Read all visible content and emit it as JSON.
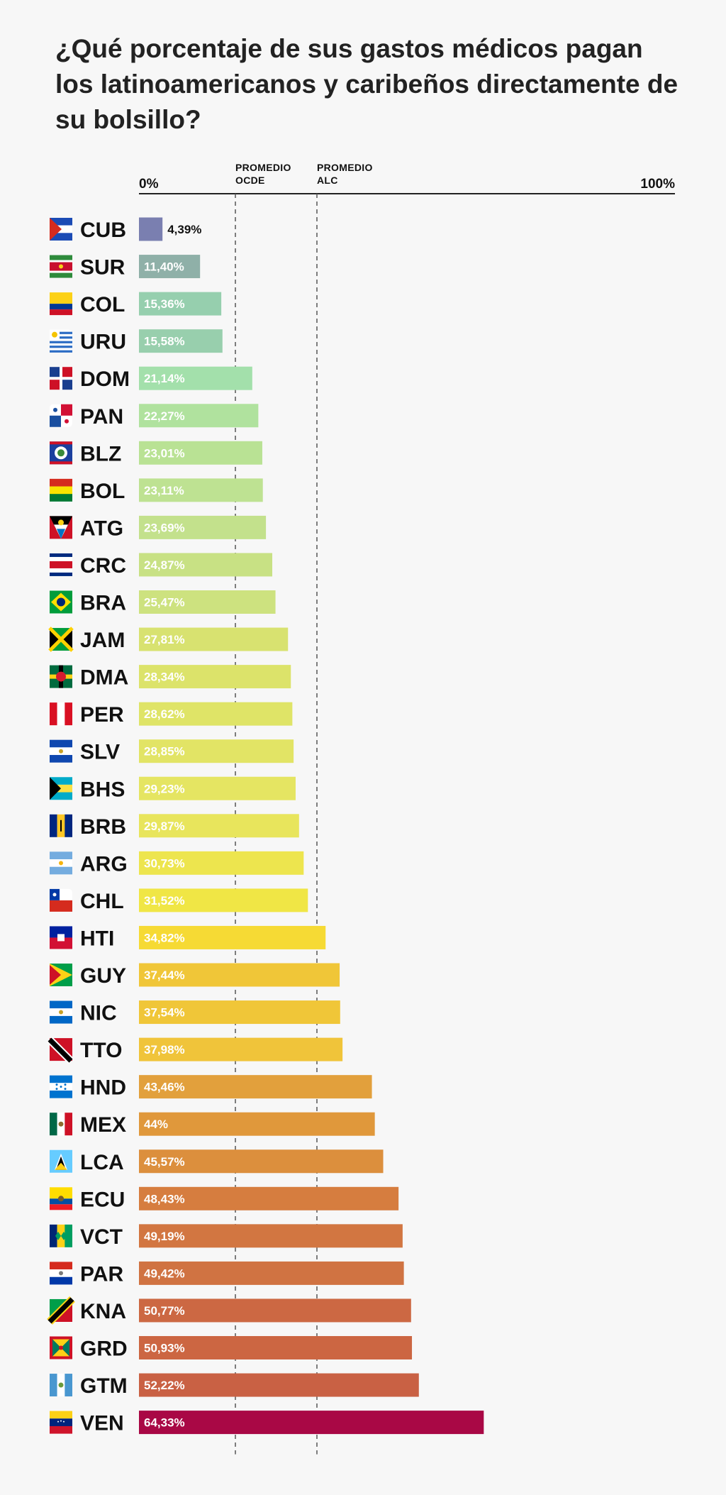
{
  "chart_data": {
    "type": "bar",
    "orientation": "horizontal",
    "title": "¿Qué porcentaje de sus gastos médicos pagan los latinoamericanos y caribeños directamente de su bolsillo?",
    "xlim": [
      0,
      100
    ],
    "xtick_labels": [
      "0%",
      "100%"
    ],
    "reference_lines": [
      {
        "line1": "PROMEDIO",
        "line2": "OCDE"
      },
      {
        "line1": "PROMEDIO",
        "line2": "ALC"
      }
    ],
    "categories": [
      "CUB",
      "SUR",
      "COL",
      "URU",
      "DOM",
      "PAN",
      "BLZ",
      "BOL",
      "ATG",
      "CRC",
      "BRA",
      "JAM",
      "DMA",
      "PER",
      "SLV",
      "BHS",
      "BRB",
      "ARG",
      "CHL",
      "HTI",
      "GUY",
      "NIC",
      "TTO",
      "HND",
      "MEX",
      "LCA",
      "ECU",
      "VCT",
      "PAR",
      "KNA",
      "GRD",
      "GTM",
      "VEN"
    ],
    "values": [
      4.39,
      11.4,
      15.36,
      15.58,
      21.14,
      22.27,
      23.01,
      23.11,
      23.69,
      24.87,
      25.47,
      27.81,
      28.34,
      28.62,
      28.85,
      29.23,
      29.87,
      30.73,
      31.52,
      34.82,
      37.44,
      37.54,
      37.98,
      43.46,
      44,
      45.57,
      48.43,
      49.19,
      49.42,
      50.77,
      50.93,
      52.22,
      64.33
    ],
    "value_labels": [
      "4,39%",
      "11,40%",
      "15,36%",
      "15,58%",
      "21,14%",
      "22,27%",
      "23,01%",
      "23,11%",
      "23,69%",
      "24,87%",
      "25,47%",
      "27,81%",
      "28,34%",
      "28,62%",
      "28,85%",
      "29,23%",
      "29,87%",
      "30,73%",
      "31,52%",
      "34,82%",
      "37,44%",
      "37,54%",
      "37,98%",
      "43,46%",
      "44%",
      "45,57%",
      "48,43%",
      "49,19%",
      "49,42%",
      "50,77%",
      "50,93%",
      "52,22%",
      "64,33%"
    ],
    "colors": [
      "#7a7fb0",
      "#8fb0a8",
      "#96cfae",
      "#98cfad",
      "#a3e0ab",
      "#b0e29e",
      "#b9e294",
      "#bee292",
      "#c3e18c",
      "#c8e184",
      "#cde27f",
      "#d8e270",
      "#dce36a",
      "#dfe467",
      "#e2e465",
      "#e5e562",
      "#e8e55c",
      "#ede54e",
      "#f0e645",
      "#f6da34",
      "#f0c638",
      "#f0c638",
      "#f0c43a",
      "#e2a03c",
      "#e0983b",
      "#dc8f3d",
      "#d67d3f",
      "#d27641",
      "#d07342",
      "#cc6843",
      "#cc6642",
      "#c96144",
      "#a90845"
    ],
    "flags": [
      "cuba",
      "suriname",
      "colombia",
      "uruguay",
      "dominican-republic",
      "panama",
      "belize",
      "bolivia",
      "antigua-and-barbuda",
      "costa-rica",
      "brazil",
      "jamaica",
      "dominica",
      "peru",
      "el-salvador",
      "bahamas",
      "barbados",
      "argentina",
      "chile",
      "haiti",
      "guyana",
      "nicaragua",
      "trinidad-and-tobago",
      "honduras",
      "mexico",
      "saint-lucia",
      "ecuador",
      "saint-vincent",
      "paraguay",
      "saint-kitts-and-nevis",
      "grenada",
      "guatemala",
      "venezuela"
    ]
  }
}
